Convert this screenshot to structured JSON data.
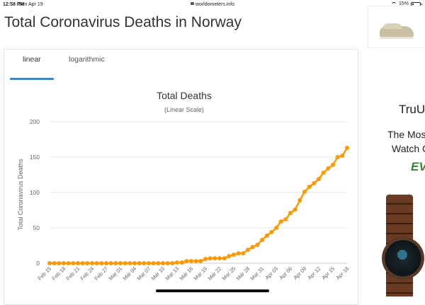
{
  "statusbar": {
    "time": "12:58 PM",
    "date": "Sun Apr 19",
    "url": "worldometers.info",
    "battery": "15%"
  },
  "page": {
    "title": "Total Coronavirus Deaths in Norway"
  },
  "tabs": [
    {
      "label": "linear",
      "active": true
    },
    {
      "label": "logarithmic",
      "active": false
    }
  ],
  "chart_data": {
    "type": "line",
    "title": "Total Deaths",
    "subtitle": "(Linear Scale)",
    "ylabel": "Total Coronavirus Deaths",
    "xlabel": "",
    "ylim": [
      0,
      200
    ],
    "yticks": [
      0,
      50,
      100,
      150,
      200
    ],
    "x_tick_labels": [
      "Feb 15",
      "Feb 18",
      "Feb 21",
      "Feb 24",
      "Feb 27",
      "Mar 01",
      "Mar 04",
      "Mar 07",
      "Mar 10",
      "Mar 13",
      "Mar 16",
      "Mar 19",
      "Mar 22",
      "Mar 25",
      "Mar 28",
      "Mar 31",
      "Apr 03",
      "Apr 06",
      "Apr 09",
      "Apr 12",
      "Apr 15",
      "Apr 18"
    ],
    "grid": true,
    "color": "#ff9900",
    "series": [
      {
        "x": [
          "Feb 15",
          "Feb 16",
          "Feb 17",
          "Feb 18",
          "Feb 19",
          "Feb 20",
          "Feb 21",
          "Feb 22",
          "Feb 23",
          "Feb 24",
          "Feb 25",
          "Feb 26",
          "Feb 27",
          "Feb 28",
          "Feb 29",
          "Mar 01",
          "Mar 02",
          "Mar 03",
          "Mar 04",
          "Mar 05",
          "Mar 06",
          "Mar 07",
          "Mar 08",
          "Mar 09",
          "Mar 10",
          "Mar 11",
          "Mar 12",
          "Mar 13",
          "Mar 14",
          "Mar 15",
          "Mar 16",
          "Mar 17",
          "Mar 18",
          "Mar 19",
          "Mar 20",
          "Mar 21",
          "Mar 22",
          "Mar 23",
          "Mar 24",
          "Mar 25",
          "Mar 26",
          "Mar 27",
          "Mar 28",
          "Mar 29",
          "Mar 30",
          "Mar 31",
          "Apr 01",
          "Apr 02",
          "Apr 03",
          "Apr 04",
          "Apr 05",
          "Apr 06",
          "Apr 07",
          "Apr 08",
          "Apr 09",
          "Apr 10",
          "Apr 11",
          "Apr 12",
          "Apr 13",
          "Apr 14",
          "Apr 15",
          "Apr 16",
          "Apr 17",
          "Apr 18"
        ],
        "values": [
          0,
          0,
          0,
          0,
          0,
          0,
          0,
          0,
          0,
          0,
          0,
          0,
          0,
          0,
          0,
          0,
          0,
          0,
          0,
          0,
          0,
          0,
          0,
          0,
          0,
          0,
          0,
          1,
          1,
          3,
          3,
          3,
          3,
          6,
          7,
          7,
          7,
          7,
          10,
          12,
          14,
          14,
          19,
          23,
          26,
          33,
          39,
          44,
          50,
          59,
          62,
          71,
          76,
          89,
          101,
          108,
          113,
          119,
          128,
          134,
          139,
          150,
          152,
          163
        ]
      }
    ]
  },
  "ads": {
    "brand": "TruU",
    "line1": "The Mos",
    "line2": "Watch C",
    "line3": "EV"
  }
}
